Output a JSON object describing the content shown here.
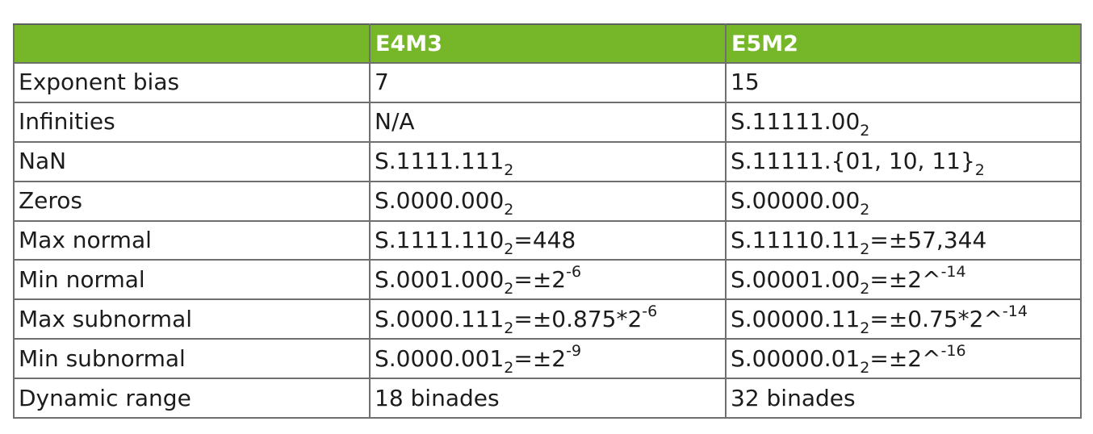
{
  "table": {
    "header": [
      "",
      "E4M3",
      "E5M2"
    ],
    "header_color": "#76b72a",
    "rows": [
      {
        "label": "Exponent bias",
        "e4m3": {
          "base": "7",
          "sub": "",
          "rest": "",
          "sup": ""
        },
        "e5m2": {
          "base": "15",
          "sub": "",
          "rest": "",
          "sup": ""
        }
      },
      {
        "label": "Infinities",
        "e4m3": {
          "base": "N/A",
          "sub": "",
          "rest": "",
          "sup": ""
        },
        "e5m2": {
          "base": "S.11111.00",
          "sub": "2",
          "rest": "",
          "sup": ""
        }
      },
      {
        "label": "NaN",
        "e4m3": {
          "base": "S.1111.111",
          "sub": "2",
          "rest": "",
          "sup": ""
        },
        "e5m2": {
          "base": "S.11111.{01, 10, 11}",
          "sub": "2",
          "rest": "",
          "sup": ""
        }
      },
      {
        "label": "Zeros",
        "e4m3": {
          "base": "S.0000.000",
          "sub": "2",
          "rest": "",
          "sup": ""
        },
        "e5m2": {
          "base": "S.00000.00",
          "sub": "2",
          "rest": "",
          "sup": ""
        }
      },
      {
        "label": "Max normal",
        "e4m3": {
          "base": "S.1111.110",
          "sub": "2",
          "rest": "=448",
          "sup": ""
        },
        "e5m2": {
          "base": "S.11110.11",
          "sub": "2",
          "rest": "=±57,344",
          "sup": ""
        }
      },
      {
        "label": "Min normal",
        "e4m3": {
          "base": "S.0001.000",
          "sub": "2",
          "rest": "=±2",
          "sup": "-6"
        },
        "e5m2": {
          "base": "S.00001.00",
          "sub": "2",
          "rest": "=±2^",
          "sup": "-14"
        }
      },
      {
        "label": "Max subnormal",
        "e4m3": {
          "base": "S.0000.111",
          "sub": "2",
          "rest": "=±0.875*2",
          "sup": "-6"
        },
        "e5m2": {
          "base": "S.00000.11",
          "sub": "2",
          "rest": "=±0.75*2^",
          "sup": "-14"
        }
      },
      {
        "label": "Min subnormal",
        "e4m3": {
          "base": "S.0000.001",
          "sub": "2",
          "rest": "=±2",
          "sup": "-9"
        },
        "e5m2": {
          "base": "S.00000.01",
          "sub": "2",
          "rest": "=±2^",
          "sup": "-16"
        }
      },
      {
        "label": "Dynamic range",
        "e4m3": {
          "base": "18 binades",
          "sub": "",
          "rest": "",
          "sup": ""
        },
        "e5m2": {
          "base": "32 binades",
          "sub": "",
          "rest": "",
          "sup": ""
        }
      }
    ]
  }
}
